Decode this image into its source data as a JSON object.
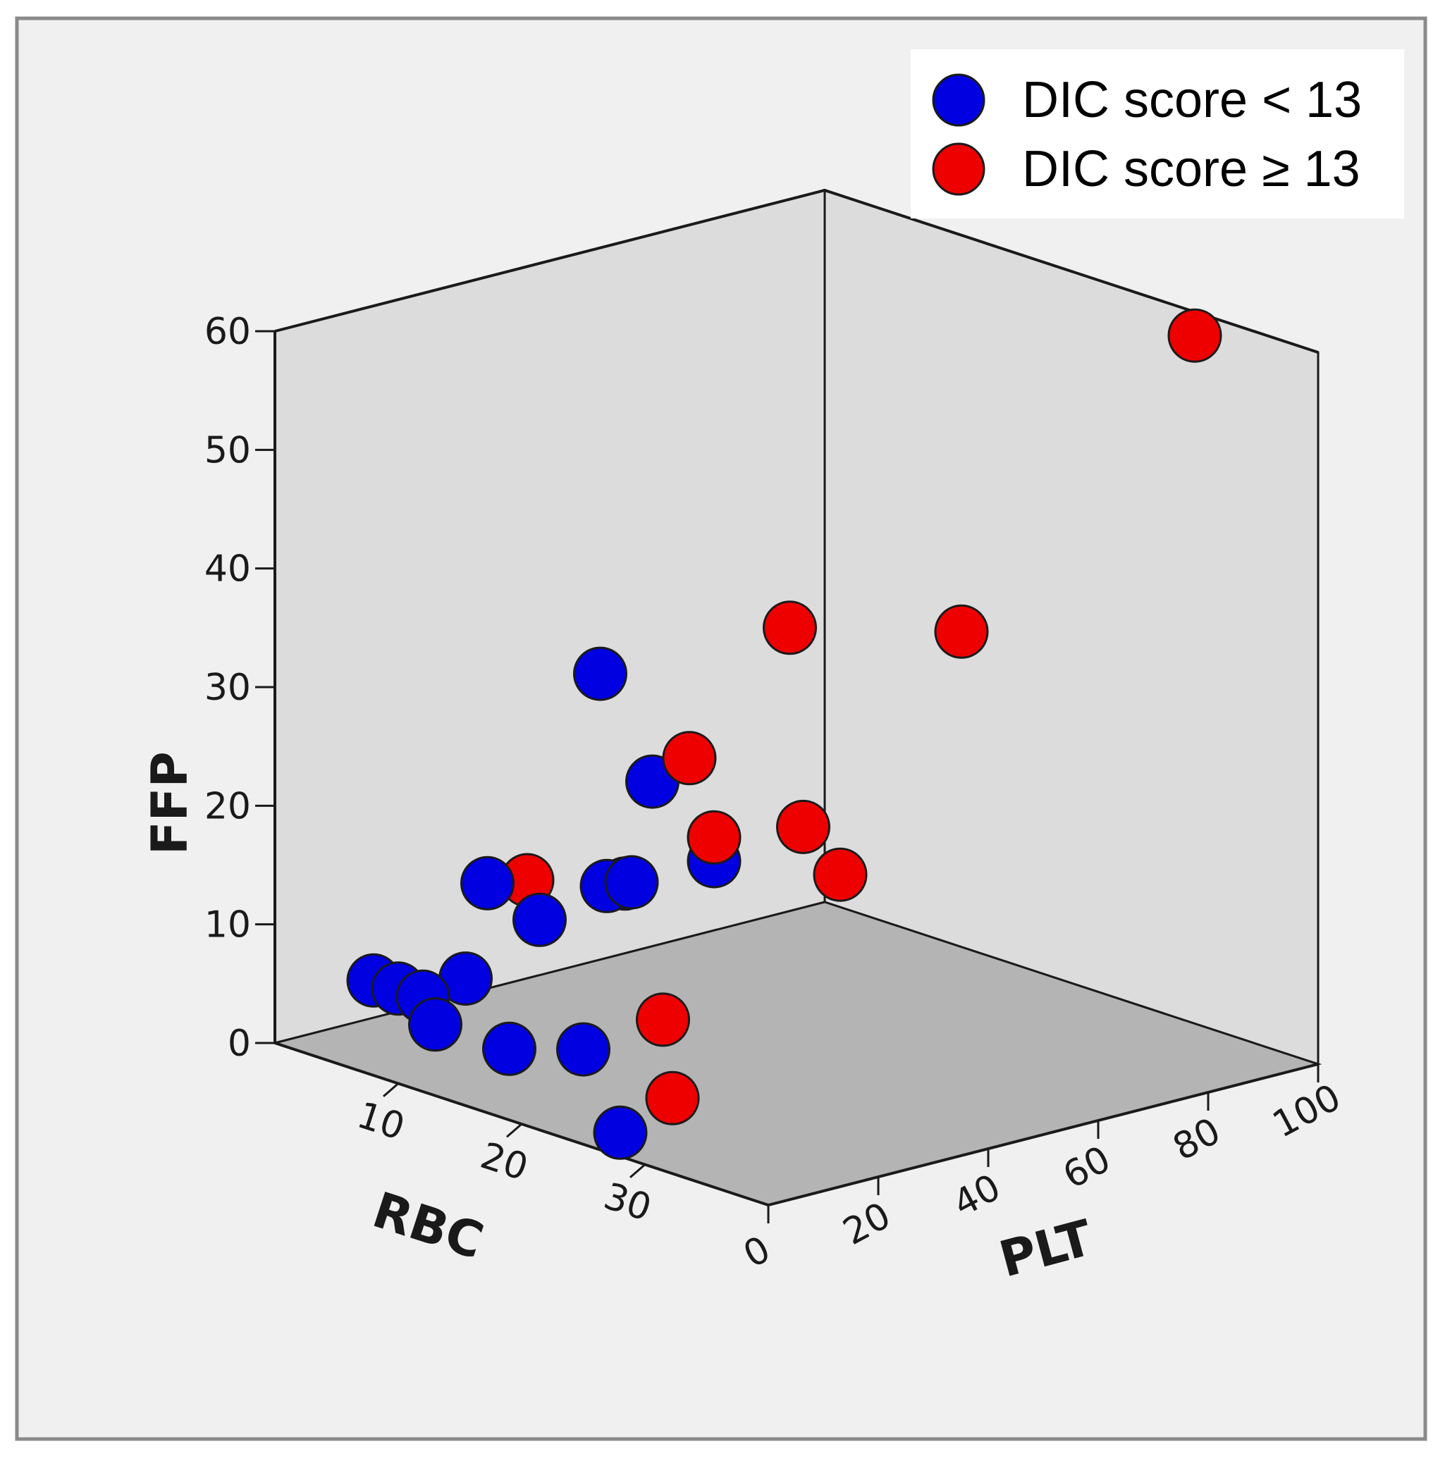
{
  "chart_data": {
    "type": "scatter",
    "projection": "3d",
    "title": "",
    "axes": {
      "x": {
        "label": "RBC",
        "range": [
          0,
          40
        ],
        "ticks": [
          10,
          20,
          30
        ]
      },
      "y": {
        "label": "FFP",
        "range": [
          0,
          60
        ],
        "ticks": [
          0,
          10,
          20,
          30,
          40,
          50,
          60
        ]
      },
      "z": {
        "label": "PLT",
        "range": [
          0,
          100
        ],
        "ticks": [
          0,
          20,
          40,
          60,
          80,
          100
        ]
      }
    },
    "colors": {
      "background": "#f0f0f0",
      "wall": "#dcdcdc",
      "floor": "#b4b4b4",
      "low": "#0000e0",
      "high": "#ee0000"
    },
    "legend": {
      "position": "top-right",
      "items": [
        {
          "label": "DIC score < 13",
          "series": "low"
        },
        {
          "label": "DIC score ≥ 13",
          "series": "high"
        }
      ]
    },
    "series": [
      {
        "name": "DIC score < 13",
        "key": "low",
        "points": [
          {
            "rbc": 8,
            "plt": 0,
            "ffp": 8
          },
          {
            "rbc": 10,
            "plt": 0,
            "ffp": 8
          },
          {
            "rbc": 13,
            "plt": 0,
            "ffp": 6
          },
          {
            "rbc": 12,
            "plt": 0,
            "ffp": 8
          },
          {
            "rbc": 11,
            "plt": 10,
            "ffp": 8
          },
          {
            "rbc": 19,
            "plt": 0,
            "ffp": 6
          },
          {
            "rbc": 25,
            "plt": 0,
            "ffp": 8
          },
          {
            "rbc": 28,
            "plt": 0,
            "ffp": 2
          },
          {
            "rbc": 17,
            "plt": 10,
            "ffp": 15
          },
          {
            "rbc": 18,
            "plt": 20,
            "ffp": 17
          },
          {
            "rbc": 20,
            "plt": 20,
            "ffp": 18
          },
          {
            "rbc": 15,
            "plt": 30,
            "ffp": 15
          },
          {
            "rbc": 13,
            "plt": 30,
            "ffp": 32
          },
          {
            "rbc": 15,
            "plt": 35,
            "ffp": 23
          },
          {
            "rbc": 15,
            "plt": 5,
            "ffp": 18
          },
          {
            "rbc": 20,
            "plt": 35,
            "ffp": 18
          }
        ]
      },
      {
        "name": "DIC score ≥ 13",
        "key": "high",
        "points": [
          {
            "rbc": 16,
            "plt": 10,
            "ffp": 18
          },
          {
            "rbc": 27,
            "plt": 10,
            "ffp": 10
          },
          {
            "rbc": 30,
            "plt": 5,
            "ffp": 5
          },
          {
            "rbc": 20,
            "plt": 35,
            "ffp": 20
          },
          {
            "rbc": 18,
            "plt": 35,
            "ffp": 26
          },
          {
            "rbc": 25,
            "plt": 40,
            "ffp": 22
          },
          {
            "rbc": 28,
            "plt": 40,
            "ffp": 19
          },
          {
            "rbc": 15,
            "plt": 60,
            "ffp": 33
          },
          {
            "rbc": 20,
            "plt": 80,
            "ffp": 32
          },
          {
            "rbc": 30,
            "plt": 100,
            "ffp": 58
          }
        ]
      }
    ]
  }
}
